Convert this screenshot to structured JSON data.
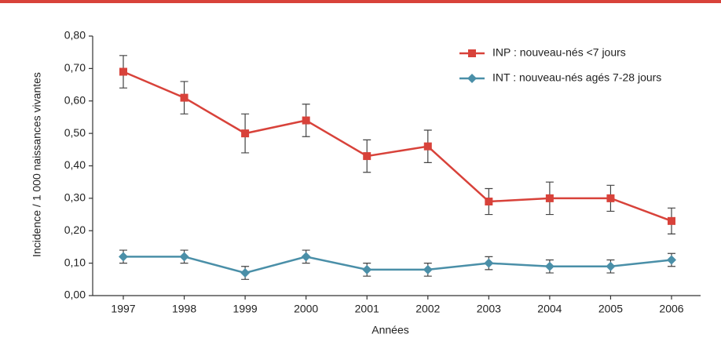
{
  "chart_data": {
    "type": "line",
    "y_label": "Incidence / 1 000 naissances vivantes",
    "x_label": "Années",
    "categories": [
      "1997",
      "1998",
      "1999",
      "2000",
      "2001",
      "2002",
      "2003",
      "2004",
      "2005",
      "2006"
    ],
    "series": [
      {
        "name": "INP : nouveau-nés <7 jours",
        "color": "#d8423a",
        "marker": "square",
        "values": [
          0.69,
          0.61,
          0.5,
          0.54,
          0.43,
          0.46,
          0.29,
          0.3,
          0.3,
          0.23
        ],
        "errors": [
          0.05,
          0.05,
          0.06,
          0.05,
          0.05,
          0.05,
          0.04,
          0.05,
          0.04,
          0.04
        ]
      },
      {
        "name": "INT : nouveau-nés agés 7-28 jours",
        "color": "#4a8fa8",
        "marker": "diamond",
        "values": [
          0.12,
          0.12,
          0.07,
          0.12,
          0.08,
          0.08,
          0.1,
          0.09,
          0.09,
          0.11
        ],
        "errors": [
          0.02,
          0.02,
          0.02,
          0.02,
          0.02,
          0.02,
          0.02,
          0.02,
          0.02,
          0.02
        ]
      }
    ],
    "ylim": [
      0,
      0.8
    ],
    "yticks": [
      {
        "value": 0,
        "label": "0,00"
      },
      {
        "value": 0.1,
        "label": "0,10"
      },
      {
        "value": 0.2,
        "label": "0,20"
      },
      {
        "value": 0.3,
        "label": "0,30"
      },
      {
        "value": 0.4,
        "label": "0,40"
      },
      {
        "value": 0.5,
        "label": "0,50"
      },
      {
        "value": 0.6,
        "label": "0,60"
      },
      {
        "value": 0.7,
        "label": "0,70"
      },
      {
        "value": 0.8,
        "label": "0,80"
      }
    ],
    "legend": "top-right",
    "grid": false
  }
}
